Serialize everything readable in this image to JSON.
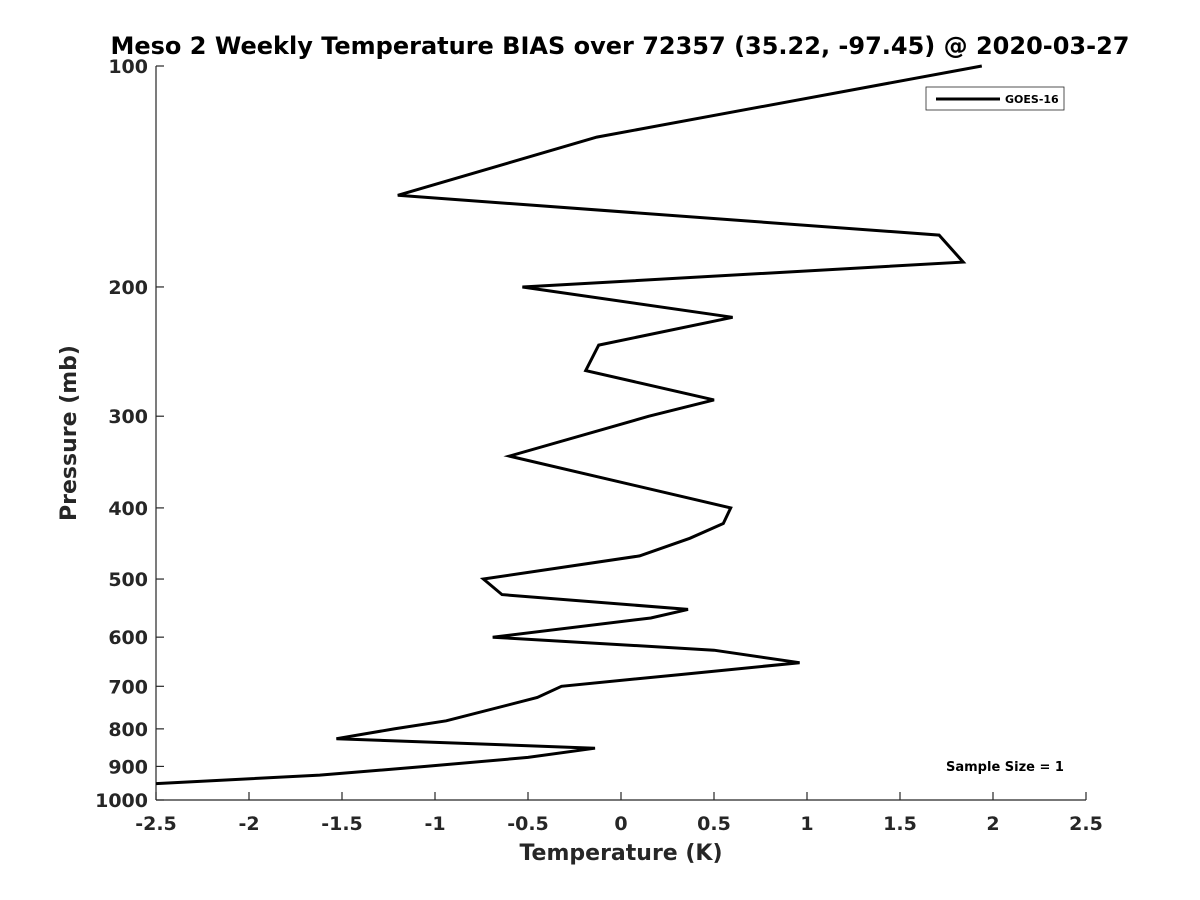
{
  "chart_data": {
    "type": "line",
    "title": "Meso 2 Weekly Temperature BIAS over 72357 (35.22, -97.45) @ 2020-03-27",
    "xlabel": "Temperature (K)",
    "ylabel": "Pressure (mb)",
    "xlim": [
      -2.5,
      2.5
    ],
    "ylim": [
      1000,
      100
    ],
    "y_scale": "log",
    "y_reversed": true,
    "x_ticks": [
      "-2.5",
      "-2",
      "-1.5",
      "-1",
      "-0.5",
      "0",
      "0.5",
      "1",
      "1.5",
      "2",
      "2.5"
    ],
    "y_ticks": [
      "100",
      "200",
      "300",
      "400",
      "500",
      "600",
      "700",
      "800",
      "900",
      "1000"
    ],
    "grid": false,
    "legend_position": "top-right",
    "annotation": "Sample Size = 1",
    "series": [
      {
        "name": "GOES-16",
        "color": "#000000",
        "points": [
          {
            "x": 1.94,
            "p": 100
          },
          {
            "x": -0.13,
            "p": 125
          },
          {
            "x": -1.2,
            "p": 150
          },
          {
            "x": 1.71,
            "p": 170
          },
          {
            "x": 1.84,
            "p": 185
          },
          {
            "x": -0.53,
            "p": 200
          },
          {
            "x": 0.6,
            "p": 220
          },
          {
            "x": -0.12,
            "p": 240
          },
          {
            "x": -0.19,
            "p": 260
          },
          {
            "x": 0.5,
            "p": 285
          },
          {
            "x": 0.15,
            "p": 300
          },
          {
            "x": -0.6,
            "p": 340
          },
          {
            "x": 0.59,
            "p": 400
          },
          {
            "x": 0.55,
            "p": 420
          },
          {
            "x": 0.37,
            "p": 440
          },
          {
            "x": 0.1,
            "p": 465
          },
          {
            "x": -0.74,
            "p": 500
          },
          {
            "x": -0.64,
            "p": 525
          },
          {
            "x": 0.36,
            "p": 550
          },
          {
            "x": 0.16,
            "p": 565
          },
          {
            "x": -0.69,
            "p": 600
          },
          {
            "x": 0.5,
            "p": 625
          },
          {
            "x": 0.96,
            "p": 650
          },
          {
            "x": 0.31,
            "p": 675
          },
          {
            "x": -0.32,
            "p": 700
          },
          {
            "x": -0.45,
            "p": 725
          },
          {
            "x": -0.94,
            "p": 780
          },
          {
            "x": -1.22,
            "p": 800
          },
          {
            "x": -1.53,
            "p": 825
          },
          {
            "x": -0.14,
            "p": 850
          },
          {
            "x": -0.5,
            "p": 875
          },
          {
            "x": -1.05,
            "p": 900
          },
          {
            "x": -1.62,
            "p": 925
          },
          {
            "x": -2.5,
            "p": 950
          }
        ]
      }
    ]
  }
}
